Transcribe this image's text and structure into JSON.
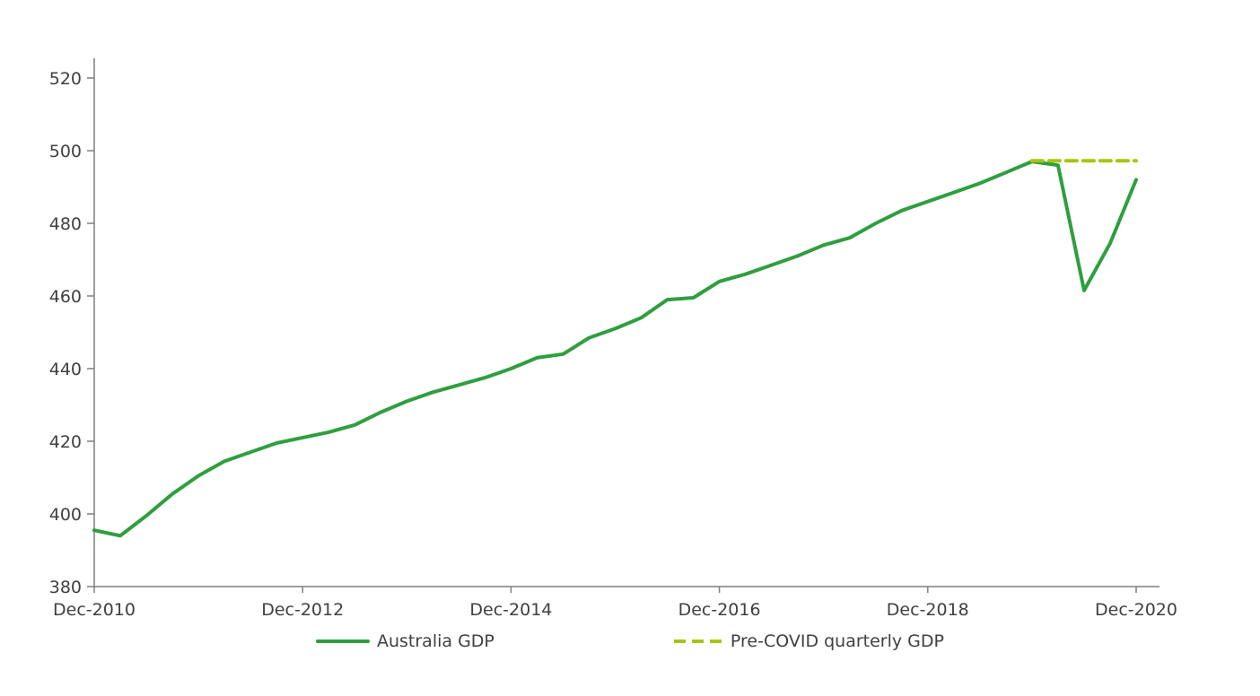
{
  "chart_data": {
    "type": "line",
    "title": "",
    "xlabel": "",
    "ylabel": "",
    "x": [
      "Dec-2010",
      "Mar-2011",
      "Jun-2011",
      "Sep-2011",
      "Dec-2011",
      "Mar-2012",
      "Jun-2012",
      "Sep-2012",
      "Dec-2012",
      "Mar-2013",
      "Jun-2013",
      "Sep-2013",
      "Dec-2013",
      "Mar-2014",
      "Jun-2014",
      "Sep-2014",
      "Dec-2014",
      "Mar-2015",
      "Jun-2015",
      "Sep-2015",
      "Dec-2015",
      "Mar-2016",
      "Jun-2016",
      "Sep-2016",
      "Dec-2016",
      "Mar-2017",
      "Jun-2017",
      "Sep-2017",
      "Dec-2017",
      "Mar-2018",
      "Jun-2018",
      "Sep-2018",
      "Dec-2018",
      "Mar-2019",
      "Jun-2019",
      "Sep-2019",
      "Dec-2019",
      "Mar-2020",
      "Jun-2020",
      "Sep-2020",
      "Dec-2020"
    ],
    "series": [
      {
        "name": "Australia GDP",
        "style": "solid",
        "color": "#2f9e3f",
        "values": [
          395.5,
          394,
          399.5,
          405.5,
          410.5,
          414.5,
          417,
          419.5,
          421,
          422.5,
          424.5,
          428,
          431,
          433.5,
          435.5,
          437.5,
          440,
          443,
          444,
          448.5,
          451,
          454,
          459,
          459.5,
          464,
          466,
          468.5,
          471,
          474,
          476,
          480,
          483.5,
          486,
          488.5,
          491,
          494,
          497,
          496,
          461.5,
          474.5,
          492
        ]
      },
      {
        "name": "Pre-COVID quarterly GDP",
        "style": "dashed",
        "color": "#a6c513",
        "values": [
          null,
          null,
          null,
          null,
          null,
          null,
          null,
          null,
          null,
          null,
          null,
          null,
          null,
          null,
          null,
          null,
          null,
          null,
          null,
          null,
          null,
          null,
          null,
          null,
          null,
          null,
          null,
          null,
          null,
          null,
          null,
          null,
          null,
          null,
          null,
          null,
          497.2,
          497.2,
          497.2,
          497.2,
          497.2
        ]
      }
    ],
    "y_axis": {
      "min": 380,
      "max": 520,
      "tick_step": 20,
      "ticks": [
        380,
        400,
        420,
        440,
        460,
        480,
        500,
        520
      ]
    },
    "x_axis": {
      "tick_labels": [
        "Dec-2010",
        "Dec-2012",
        "Dec-2014",
        "Dec-2016",
        "Dec-2018",
        "Dec-2020"
      ],
      "tick_every_quarters": 8
    },
    "grid": "off",
    "legend_position": "bottom",
    "axis_color": "#7f7f7f",
    "text_color": "#404040"
  },
  "legend": {
    "items": [
      {
        "label": "Australia GDP"
      },
      {
        "label": "Pre-COVID quarterly GDP"
      }
    ]
  }
}
